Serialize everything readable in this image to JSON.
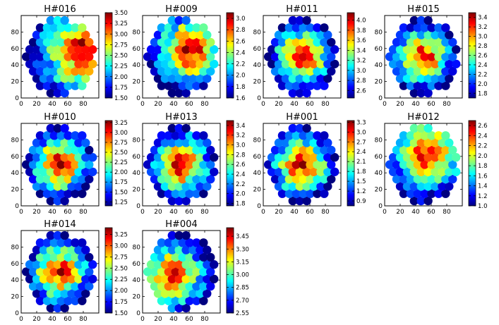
{
  "colormap": [
    "#00007f",
    "#0000ff",
    "#007fff",
    "#00ffff",
    "#7fff7f",
    "#ffff00",
    "#ff7f00",
    "#ff0000",
    "#7f0000"
  ],
  "chart_data": [
    {
      "type": "scatter",
      "title": "H#016",
      "pattern": "hot-upper-right",
      "xlim": [
        0,
        100
      ],
      "ylim": [
        0,
        100
      ],
      "xticks": [
        "0",
        "20",
        "40",
        "60",
        "80"
      ],
      "yticks": [
        "0",
        "20",
        "40",
        "60",
        "80"
      ],
      "cbar": {
        "min": 1.5,
        "max": 3.5,
        "ticks": [
          "1.50",
          "1.75",
          "2.00",
          "2.25",
          "2.50",
          "2.75",
          "3.00",
          "3.25",
          "3.50"
        ]
      }
    },
    {
      "type": "scatter",
      "title": "H#009",
      "pattern": "hot-center-right",
      "xlim": [
        0,
        100
      ],
      "ylim": [
        0,
        100
      ],
      "xticks": [
        "0",
        "20",
        "40",
        "60",
        "80"
      ],
      "yticks": [
        "0",
        "20",
        "40",
        "60",
        "80"
      ],
      "cbar": {
        "min": 1.6,
        "max": 3.1,
        "ticks": [
          "1.6",
          "1.8",
          "2.0",
          "2.2",
          "2.4",
          "2.6",
          "2.8",
          "3.0"
        ]
      }
    },
    {
      "type": "scatter",
      "title": "H#011",
      "pattern": "hot-center",
      "xlim": [
        0,
        100
      ],
      "ylim": [
        0,
        100
      ],
      "xticks": [
        "0",
        "20",
        "40",
        "60",
        "80"
      ],
      "yticks": [
        "0",
        "20",
        "40",
        "60",
        "80"
      ],
      "cbar": {
        "min": 2.45,
        "max": 4.15,
        "ticks": [
          "2.6",
          "2.8",
          "3.0",
          "3.2",
          "3.4",
          "3.6",
          "3.8",
          "4.0"
        ]
      }
    },
    {
      "type": "scatter",
      "title": "H#015",
      "pattern": "hot-center",
      "xlim": [
        0,
        100
      ],
      "ylim": [
        0,
        100
      ],
      "xticks": [
        "0",
        "20",
        "40",
        "60",
        "80"
      ],
      "yticks": [
        "0",
        "20",
        "40",
        "60",
        "80"
      ],
      "cbar": {
        "min": 1.7,
        "max": 3.5,
        "ticks": [
          "1.8",
          "2.0",
          "2.2",
          "2.4",
          "2.6",
          "2.8",
          "3.0",
          "3.2",
          "3.4"
        ]
      }
    },
    {
      "type": "scatter",
      "title": "H#010",
      "pattern": "hot-center",
      "xlim": [
        0,
        100
      ],
      "ylim": [
        0,
        100
      ],
      "xticks": [
        "0",
        "20",
        "40",
        "60",
        "80"
      ],
      "yticks": [
        "0",
        "20",
        "40",
        "60",
        "80"
      ],
      "cbar": {
        "min": 1.15,
        "max": 3.3,
        "ticks": [
          "1.25",
          "1.50",
          "1.75",
          "2.00",
          "2.25",
          "2.50",
          "2.75",
          "3.00",
          "3.25"
        ]
      }
    },
    {
      "type": "scatter",
      "title": "H#013",
      "pattern": "hot-center",
      "xlim": [
        0,
        100
      ],
      "ylim": [
        0,
        100
      ],
      "xticks": [
        "0",
        "20",
        "40",
        "60",
        "80"
      ],
      "yticks": [
        "0",
        "20",
        "40",
        "60",
        "80"
      ],
      "cbar": {
        "min": 1.75,
        "max": 3.5,
        "ticks": [
          "1.8",
          "2.0",
          "2.2",
          "2.4",
          "2.6",
          "2.8",
          "3.0",
          "3.2",
          "3.4"
        ]
      }
    },
    {
      "type": "scatter",
      "title": "H#001",
      "pattern": "hot-center",
      "xlim": [
        0,
        100
      ],
      "ylim": [
        0,
        100
      ],
      "xticks": [
        "0",
        "20",
        "40",
        "60",
        "80"
      ],
      "yticks": [
        "0",
        "20",
        "40",
        "60",
        "80"
      ],
      "cbar": {
        "min": 0.75,
        "max": 3.35,
        "ticks": [
          "0.9",
          "1.2",
          "1.5",
          "1.8",
          "2.1",
          "2.4",
          "2.7",
          "3.0",
          "3.3"
        ]
      }
    },
    {
      "type": "scatter",
      "title": "H#012",
      "pattern": "hot-upper",
      "xlim": [
        0,
        100
      ],
      "ylim": [
        0,
        100
      ],
      "xticks": [
        "0",
        "20",
        "40",
        "60",
        "80"
      ],
      "yticks": [
        "0",
        "20",
        "40",
        "60",
        "80"
      ],
      "cbar": {
        "min": 1.0,
        "max": 2.7,
        "ticks": [
          "1.0",
          "1.2",
          "1.4",
          "1.6",
          "1.8",
          "2.0",
          "2.2",
          "2.4",
          "2.6"
        ]
      }
    },
    {
      "type": "scatter",
      "title": "H#014",
      "pattern": "hot-center",
      "xlim": [
        0,
        100
      ],
      "ylim": [
        0,
        100
      ],
      "xticks": [
        "0",
        "20",
        "40",
        "60",
        "80"
      ],
      "yticks": [
        "0",
        "20",
        "40",
        "60",
        "80"
      ],
      "cbar": {
        "min": 1.5,
        "max": 3.4,
        "ticks": [
          "1.50",
          "1.75",
          "2.00",
          "2.25",
          "2.50",
          "2.75",
          "3.00",
          "3.25"
        ]
      }
    },
    {
      "type": "scatter",
      "title": "H#004",
      "pattern": "hot-left-center",
      "xlim": [
        0,
        100
      ],
      "ylim": [
        0,
        100
      ],
      "xticks": [
        "0",
        "20",
        "40",
        "60",
        "80"
      ],
      "yticks": [
        "0",
        "20",
        "40",
        "60",
        "80"
      ],
      "cbar": {
        "min": 2.55,
        "max": 3.55,
        "ticks": [
          "2.55",
          "2.70",
          "2.85",
          "3.00",
          "3.15",
          "3.30",
          "3.45"
        ]
      }
    }
  ]
}
